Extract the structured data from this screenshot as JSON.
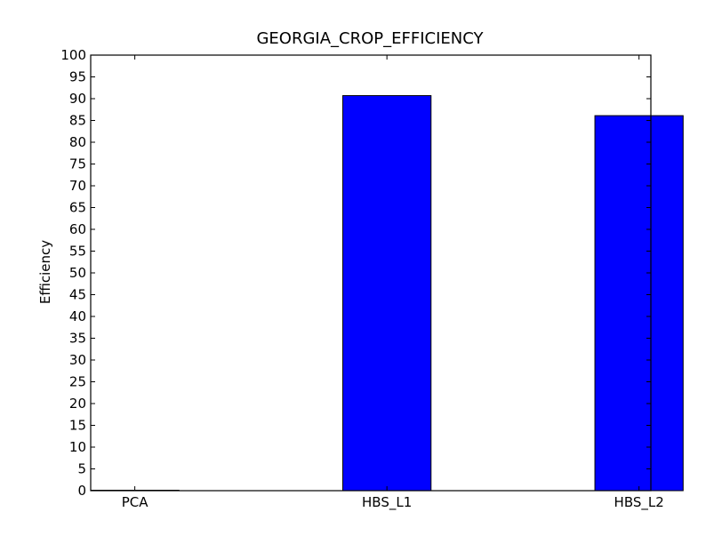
{
  "chart_data": {
    "type": "bar",
    "title": "GEORGIA_CROP_EFFICIENCY",
    "xlabel": "",
    "ylabel": "Efficiency",
    "categories": [
      "PCA",
      "HBS_L1",
      "HBS_L2"
    ],
    "values": [
      0.1,
      90.7,
      86.1
    ],
    "ylim": [
      0,
      100
    ],
    "yticks": [
      0,
      5,
      10,
      15,
      20,
      25,
      30,
      35,
      40,
      45,
      50,
      55,
      60,
      65,
      70,
      75,
      80,
      85,
      90,
      95,
      100
    ],
    "grid": false,
    "legend": "none",
    "bar_color": "#0000ff",
    "edge_color": "#000000"
  }
}
